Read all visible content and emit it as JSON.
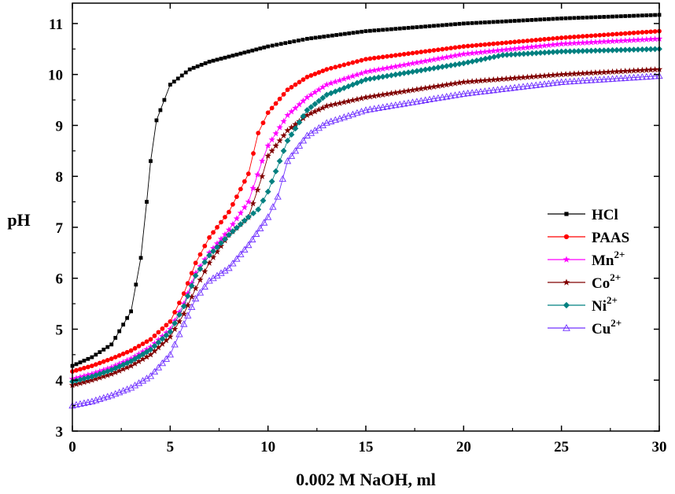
{
  "chart_data": {
    "type": "line",
    "xlabel": "0.002 M NaOH, ml",
    "ylabel": "pH",
    "xlim": [
      0,
      30
    ],
    "ylim": [
      3,
      11.4
    ],
    "x_ticks": [
      "0",
      "5",
      "10",
      "15",
      "20",
      "25",
      "30"
    ],
    "y_ticks": [
      "3",
      "4",
      "5",
      "6",
      "7",
      "8",
      "9",
      "10",
      "11"
    ],
    "legend_position": "right",
    "series": [
      {
        "name": "HCl",
        "label": "HCl",
        "sup": "",
        "color": "#000000",
        "marker": "square",
        "points": [
          [
            0,
            4.28
          ],
          [
            1,
            4.45
          ],
          [
            2,
            4.7
          ],
          [
            3,
            5.35
          ],
          [
            3.5,
            6.4
          ],
          [
            3.8,
            7.5
          ],
          [
            4,
            8.3
          ],
          [
            4.3,
            9.1
          ],
          [
            4.7,
            9.5
          ],
          [
            5,
            9.8
          ],
          [
            6,
            10.1
          ],
          [
            7,
            10.25
          ],
          [
            8,
            10.35
          ],
          [
            9,
            10.45
          ],
          [
            10,
            10.55
          ],
          [
            12,
            10.7
          ],
          [
            15,
            10.85
          ],
          [
            20,
            11.0
          ],
          [
            25,
            11.1
          ],
          [
            30,
            11.17
          ]
        ]
      },
      {
        "name": "PAAS",
        "label": "PAAS",
        "sup": "",
        "color": "#ff0000",
        "marker": "circle",
        "points": [
          [
            0,
            4.17
          ],
          [
            1,
            4.28
          ],
          [
            2,
            4.42
          ],
          [
            3,
            4.58
          ],
          [
            4,
            4.8
          ],
          [
            5,
            5.15
          ],
          [
            5.7,
            5.7
          ],
          [
            6.3,
            6.3
          ],
          [
            7,
            6.8
          ],
          [
            8,
            7.3
          ],
          [
            9,
            8.05
          ],
          [
            9.5,
            8.85
          ],
          [
            10,
            9.25
          ],
          [
            11,
            9.7
          ],
          [
            12,
            9.95
          ],
          [
            13,
            10.1
          ],
          [
            15,
            10.3
          ],
          [
            20,
            10.55
          ],
          [
            25,
            10.72
          ],
          [
            30,
            10.85
          ]
        ]
      },
      {
        "name": "Mn2+",
        "label": "Mn",
        "sup": "2+",
        "color": "#ff00ff",
        "marker": "star",
        "points": [
          [
            0,
            4.02
          ],
          [
            1,
            4.12
          ],
          [
            2,
            4.25
          ],
          [
            3,
            4.42
          ],
          [
            4,
            4.65
          ],
          [
            5,
            5.0
          ],
          [
            5.7,
            5.5
          ],
          [
            6.3,
            6.1
          ],
          [
            7,
            6.5
          ],
          [
            8,
            6.95
          ],
          [
            9,
            7.5
          ],
          [
            9.7,
            8.3
          ],
          [
            10,
            8.6
          ],
          [
            11,
            9.2
          ],
          [
            12,
            9.55
          ],
          [
            13,
            9.8
          ],
          [
            15,
            10.05
          ],
          [
            20,
            10.4
          ],
          [
            25,
            10.6
          ],
          [
            30,
            10.7
          ]
        ]
      },
      {
        "name": "Co2+",
        "label": "Co",
        "sup": "2+",
        "color": "#800000",
        "marker": "star",
        "points": [
          [
            0,
            3.9
          ],
          [
            1,
            4.0
          ],
          [
            2,
            4.12
          ],
          [
            3,
            4.28
          ],
          [
            4,
            4.5
          ],
          [
            5,
            4.85
          ],
          [
            5.7,
            5.3
          ],
          [
            6.3,
            5.8
          ],
          [
            7,
            6.3
          ],
          [
            8,
            6.85
          ],
          [
            9,
            7.2
          ],
          [
            9.7,
            8.0
          ],
          [
            10,
            8.4
          ],
          [
            11,
            8.9
          ],
          [
            12,
            9.2
          ],
          [
            13,
            9.38
          ],
          [
            15,
            9.55
          ],
          [
            20,
            9.85
          ],
          [
            25,
            10.0
          ],
          [
            30,
            10.1
          ]
        ]
      },
      {
        "name": "Ni2+",
        "label": "Ni",
        "sup": "2+",
        "color": "#008080",
        "marker": "diamond",
        "points": [
          [
            0,
            3.97
          ],
          [
            1,
            4.07
          ],
          [
            2,
            4.2
          ],
          [
            3,
            4.37
          ],
          [
            4,
            4.6
          ],
          [
            5,
            4.95
          ],
          [
            5.7,
            5.45
          ],
          [
            6.3,
            6.05
          ],
          [
            7,
            6.45
          ],
          [
            8,
            6.85
          ],
          [
            9,
            7.2
          ],
          [
            9.5,
            7.35
          ],
          [
            10,
            7.7
          ],
          [
            11,
            8.7
          ],
          [
            12,
            9.3
          ],
          [
            13,
            9.6
          ],
          [
            15,
            9.9
          ],
          [
            20,
            10.22
          ],
          [
            22,
            10.38
          ],
          [
            25,
            10.45
          ],
          [
            30,
            10.5
          ]
        ]
      },
      {
        "name": "Cu2+",
        "label": "Cu",
        "sup": "2+",
        "color": "#7030ff",
        "marker": "triangle",
        "points": [
          [
            0,
            3.5
          ],
          [
            1,
            3.58
          ],
          [
            2,
            3.7
          ],
          [
            3,
            3.85
          ],
          [
            4,
            4.08
          ],
          [
            5,
            4.5
          ],
          [
            5.7,
            5.1
          ],
          [
            6.3,
            5.6
          ],
          [
            7,
            5.95
          ],
          [
            8,
            6.2
          ],
          [
            9,
            6.65
          ],
          [
            10,
            7.2
          ],
          [
            10.5,
            7.6
          ],
          [
            11,
            8.3
          ],
          [
            12,
            8.8
          ],
          [
            13,
            9.05
          ],
          [
            15,
            9.3
          ],
          [
            20,
            9.62
          ],
          [
            25,
            9.85
          ],
          [
            30,
            9.97
          ]
        ]
      }
    ]
  }
}
